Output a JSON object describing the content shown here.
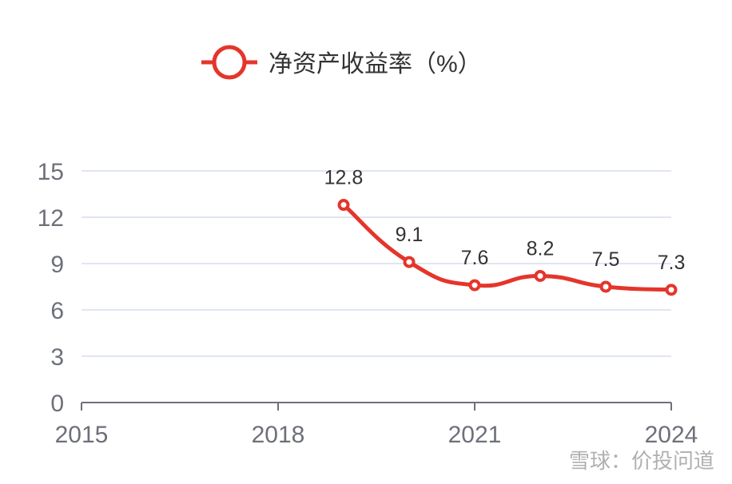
{
  "legend": {
    "label": "净资产收益率（%）"
  },
  "watermark": "雪球：价投问道",
  "chart_data": {
    "type": "line",
    "title": "",
    "xlabel": "",
    "ylabel": "",
    "x_ticks": [
      "2015",
      "2018",
      "2021",
      "2024"
    ],
    "y_ticks": [
      "0",
      "3",
      "6",
      "9",
      "12",
      "15"
    ],
    "xlim": [
      2015,
      2024
    ],
    "ylim": [
      0,
      15
    ],
    "grid": true,
    "legend_position": "top-center",
    "series": [
      {
        "name": "净资产收益率（%）",
        "color": "#e5352b",
        "x": [
          2019,
          2020,
          2021,
          2022,
          2023,
          2024
        ],
        "values": [
          12.8,
          9.1,
          7.6,
          8.2,
          7.5,
          7.3
        ],
        "labels": [
          "12.8",
          "9.1",
          "7.6",
          "8.2",
          "7.5",
          "7.3"
        ]
      }
    ]
  }
}
